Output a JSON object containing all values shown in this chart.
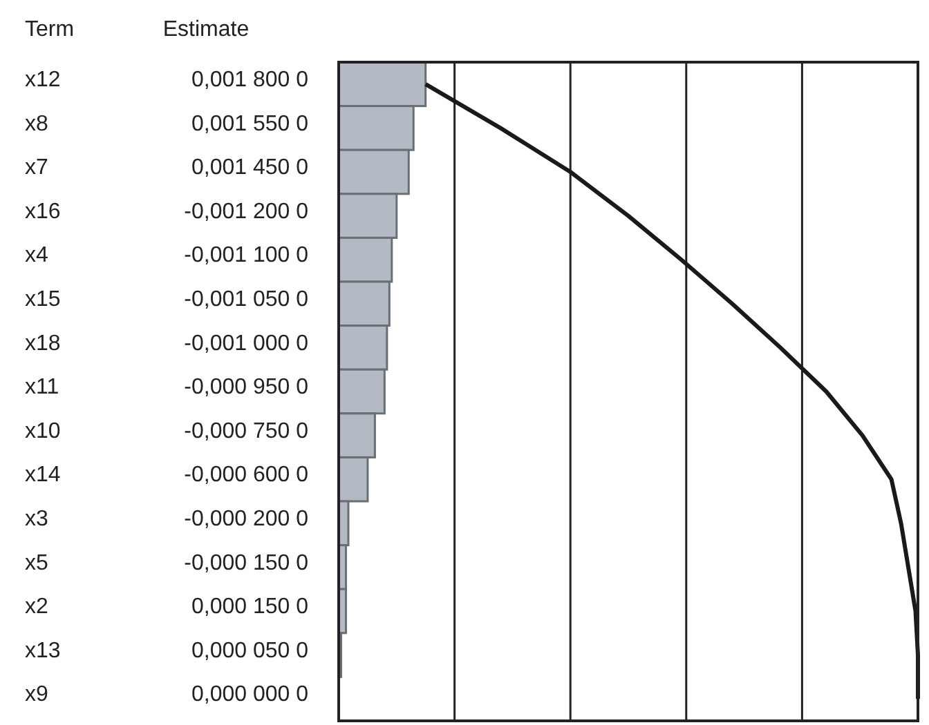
{
  "chart_data": {
    "type": "bar",
    "orientation": "horizontal",
    "ylabel": "Term",
    "annotations": [
      "Estimate"
    ],
    "categories": [
      "x12",
      "x8",
      "x7",
      "x16",
      "x4",
      "x15",
      "x18",
      "x11",
      "x10",
      "x14",
      "x3",
      "x5",
      "x2",
      "x13",
      "x9"
    ],
    "series": [
      {
        "color": "#b4bac3",
        "values": [
          0.0018,
          0.00155,
          0.00145,
          0.0012,
          0.0011,
          0.00105,
          0.001,
          0.00095,
          0.00075,
          0.0006,
          0.0002,
          0.00015,
          0.00015,
          5e-05,
          0
        ],
        "value_labels": [
          "0,001 800 0",
          "0,001 550 0",
          "0,001 450 0",
          "-0,001 200 0",
          "-0,001 100 0",
          "-0,001 050 0",
          "-0,001 000 0",
          "-0,000 950 0",
          "-0,000 750 0",
          "-0,000 600 0",
          "-0,000 200 0",
          "-0,000 150 0",
          "0,000 150 0",
          "0,000 050 0",
          "0,000 000 0"
        ]
      },
      {
        "type": "line",
        "color": "#1a1a1a",
        "values": [
          0.0018,
          0.00335,
          0.0048,
          0.006,
          0.0071,
          0.00815,
          0.00915,
          0.0101,
          0.01085,
          0.01145,
          0.01165,
          0.0118,
          0.01195,
          0.012,
          0.012
        ]
      }
    ],
    "xlim": [
      0,
      0.012
    ],
    "xticks": [
      {
        "value": 0,
        "label": null
      },
      {
        "value": 0.0024,
        "label": null
      },
      {
        "value": 0.0048,
        "label": null
      },
      {
        "value": 0.0072,
        "label": null
      },
      {
        "value": 0.0096,
        "label": null
      },
      {
        "value": 0.012,
        "label": null
      }
    ],
    "grid": "x",
    "tick_labels": "y",
    "marker": "none",
    "line_style": "solid"
  }
}
